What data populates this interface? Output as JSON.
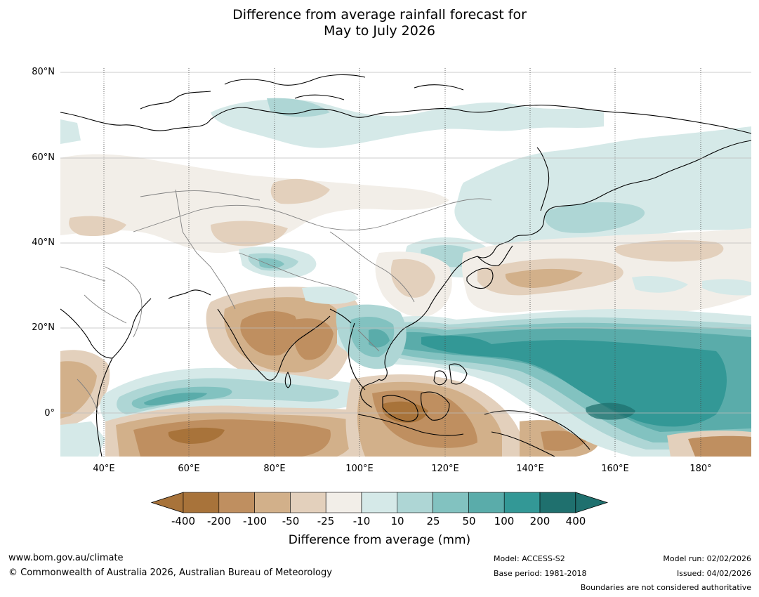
{
  "title": {
    "line1": "Difference from average rainfall forecast for",
    "line2": "May to July 2026"
  },
  "map": {
    "type": "rainfall anomaly contour map",
    "lat_labels": [
      "80°N",
      "60°N",
      "40°N",
      "20°N",
      "0°"
    ],
    "lon_labels": [
      "40°E",
      "60°E",
      "80°E",
      "100°E",
      "120°E",
      "140°E",
      "160°E",
      "180°"
    ],
    "extent": {
      "lon": [
        30,
        192
      ],
      "lat": [
        -10,
        81
      ]
    }
  },
  "colorbar": {
    "title": "Difference from average (mm)",
    "labels": [
      "-400",
      "-200",
      "-100",
      "-50",
      "-25",
      "-10",
      "10",
      "25",
      "50",
      "100",
      "200",
      "400"
    ],
    "colors": [
      "#a8733a",
      "#bf8f60",
      "#d2b08a",
      "#e3d0bc",
      "#f2eee8",
      "#ffffff",
      "#d5e9e8",
      "#aed6d5",
      "#82c2c0",
      "#5aacaa",
      "#339896",
      "#1f706e"
    ],
    "low_extend_color": "#a8733a",
    "high_extend_color": "#1f706e"
  },
  "footer": {
    "url": "www.bom.gov.au/climate",
    "copyright": "© Commonwealth of Australia 2026, Australian Bureau of Meteorology",
    "model": "Model: ACCESS-S2",
    "base_period": "Base period: 1981-2018",
    "model_run": "Model run: 02/02/2026",
    "issued": "Issued: 04/02/2026",
    "disclaimer": "Boundaries are not considered authoritative"
  }
}
